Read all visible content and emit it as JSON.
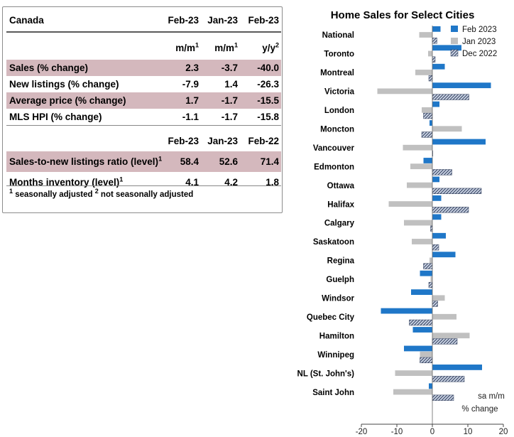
{
  "table": {
    "header": {
      "region": "Canada",
      "cols": [
        "Feb-23",
        "Jan-23",
        "Feb-23"
      ]
    },
    "units": [
      {
        "base": "m/m",
        "sup": "1"
      },
      {
        "base": "m/m",
        "sup": "1"
      },
      {
        "base": "y/y",
        "sup": "2"
      }
    ],
    "rows": [
      {
        "label": "Sales (% change)",
        "values": [
          "2.3",
          "-3.7",
          "-40.0"
        ],
        "highlight": true
      },
      {
        "label": "New listings (% change)",
        "values": [
          "-7.9",
          "1.4",
          "-26.3"
        ],
        "highlight": false
      },
      {
        "label": "Average price (% change)",
        "values": [
          "1.7",
          "-1.7",
          "-15.5"
        ],
        "highlight": true
      },
      {
        "label": "MLS HPI (% change)",
        "values": [
          "-1.1",
          "-1.7",
          "-15.8"
        ],
        "highlight": false
      }
    ],
    "header2": {
      "cols": [
        "Feb-23",
        "Jan-23",
        "Feb-22"
      ]
    },
    "rows2": [
      {
        "label": "Sales-to-new listings ratio (level)",
        "sup": "1",
        "values": [
          "58.4",
          "52.6",
          "71.4"
        ],
        "highlight": true
      },
      {
        "label": "Months inventory (level)",
        "sup": "1",
        "values": [
          "4.1",
          "4.2",
          "1.8"
        ],
        "highlight": false
      }
    ],
    "footnote": {
      "sup1": "1",
      "text1": " seasonally adjusted ",
      "sup2": "2",
      "text2": " not seasonally adjusted"
    }
  },
  "chart_data": {
    "type": "bar",
    "orientation": "horizontal",
    "title": "Home Sales for Select Cities",
    "categories": [
      "National",
      "Toronto",
      "Montreal",
      "Victoria",
      "London",
      "Moncton",
      "Vancouver",
      "Edmonton",
      "Ottawa",
      "Halifax",
      "Calgary",
      "Saskatoon",
      "Regina",
      "Guelph",
      "Windsor",
      "Quebec City",
      "Hamilton",
      "Winnipeg",
      "NL (St. John's)",
      "Saint John"
    ],
    "series": [
      {
        "name": "Feb 2023",
        "color": "#1f77c8",
        "pattern": "solid",
        "values": [
          2.3,
          8.2,
          3.5,
          16.5,
          2.0,
          -0.8,
          15.0,
          -2.5,
          2.0,
          2.5,
          2.5,
          3.8,
          6.5,
          -3.5,
          -6.0,
          -14.5,
          -5.5,
          -8.0,
          14.0,
          -1.0
        ]
      },
      {
        "name": "Jan 2023",
        "color": "#c0c0c0",
        "pattern": "solid",
        "values": [
          -3.7,
          -1.2,
          -4.8,
          -15.5,
          -3.0,
          8.3,
          -8.3,
          -6.2,
          -7.2,
          -12.3,
          -8.0,
          -5.8,
          -0.8,
          -0.5,
          3.5,
          6.8,
          10.5,
          -3.5,
          -10.5,
          -11.0
        ]
      },
      {
        "name": "Dec 2022",
        "color": "#2f3c5a",
        "pattern": "hatch",
        "values": [
          1.3,
          0.8,
          -1.0,
          10.3,
          -2.5,
          -3.0,
          0.0,
          5.5,
          13.8,
          10.2,
          -0.5,
          1.8,
          -2.5,
          -1.0,
          1.5,
          -6.5,
          7.0,
          -3.5,
          9.0,
          6.0
        ]
      }
    ],
    "xlim": [
      -20,
      20
    ],
    "xticks": [
      -20,
      -10,
      0,
      10,
      20
    ],
    "legend_position": "top-right",
    "annotation": [
      "sa m/m",
      "% change"
    ],
    "grid": false
  }
}
